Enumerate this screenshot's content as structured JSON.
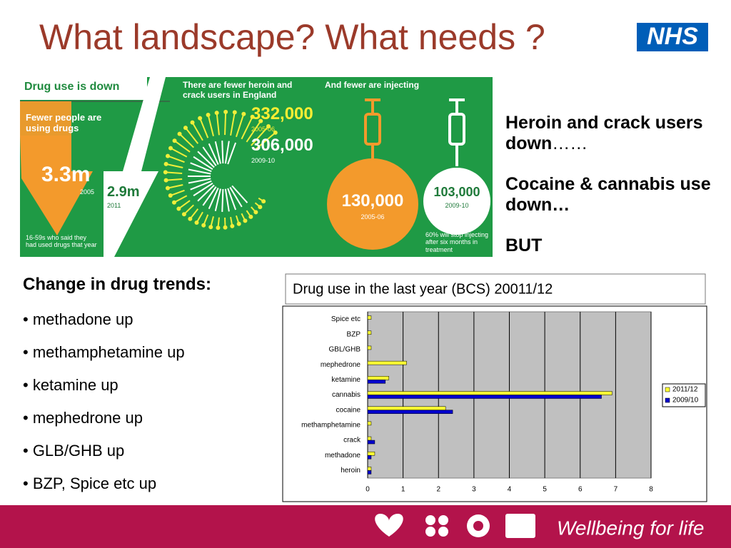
{
  "title": "What landscape? What needs ?",
  "logo": "NHS",
  "infographic": {
    "heading": "Drug use is down",
    "people_text": "Fewer people are using drugs",
    "people_2005": "3.3m",
    "year_2005": "2005",
    "people_2011": "2.9m",
    "year_2011": "2011",
    "note": "16-59s who said they had used drugs that year",
    "heroin_heading": "There are fewer heroin and crack users in England",
    "heroin_2005": "332,000",
    "heroin_year_2005": "2005-06",
    "heroin_2009": "306,000",
    "heroin_year_2009": "2009-10",
    "inject_heading": "And fewer are injecting",
    "inject_2005": "130,000",
    "inject_year_2005": "2005-06",
    "inject_2009": "103,000",
    "inject_year_2009": "2009-10",
    "inject_note": "60% will stop injecting after six months in treatment"
  },
  "summary": {
    "line1_bold": "Heroin and crack users down",
    "line1_tail": "……",
    "line2": "Cocaine & cannabis use down…",
    "line3": "BUT"
  },
  "trends": {
    "heading": "Change in drug trends:",
    "items": [
      "• methadone up",
      "• methamphetamine up",
      "• ketamine up",
      "• mephedrone up",
      "• GLB/GHB up",
      "• BZP, Spice etc up"
    ]
  },
  "chart_data": {
    "type": "hbar",
    "title": "Drug use in the last year (BCS) 20011/12",
    "categories": [
      "Spice etc",
      "BZP",
      "GBL/GHB",
      "mephedrone",
      "ketamine",
      "cannabis",
      "cocaine",
      "methamphetamine",
      "crack",
      "methadone",
      "heroin"
    ],
    "series": [
      {
        "name": "2011/12",
        "color": "#ffff33",
        "values": [
          0.1,
          0.1,
          0.1,
          1.1,
          0.6,
          6.9,
          2.2,
          0.1,
          0.1,
          0.2,
          0.1
        ]
      },
      {
        "name": "2009/10",
        "color": "#0000cc",
        "values": [
          null,
          null,
          null,
          null,
          0.5,
          6.6,
          2.4,
          null,
          0.2,
          0.1,
          0.1
        ]
      }
    ],
    "xlim": [
      0,
      8
    ],
    "xticks": [
      0,
      1,
      2,
      3,
      4,
      5,
      6,
      7,
      8
    ],
    "grid": true,
    "legend": "right"
  },
  "footer": "Wellbeing for life"
}
